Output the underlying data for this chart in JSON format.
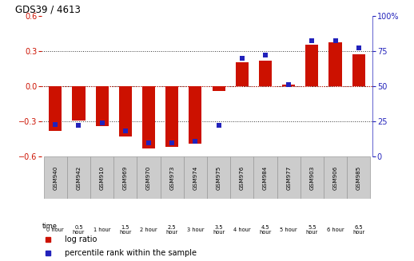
{
  "title": "GDS39 / 4613",
  "samples": [
    "GSM940",
    "GSM942",
    "GSM910",
    "GSM969",
    "GSM970",
    "GSM973",
    "GSM974",
    "GSM975",
    "GSM976",
    "GSM984",
    "GSM977",
    "GSM903",
    "GSM906",
    "GSM985"
  ],
  "time_labels": [
    "0 hour",
    "0.5\nhour",
    "1 hour",
    "1.5\nhour",
    "2 hour",
    "2.5\nhour",
    "3 hour",
    "3.5\nhour",
    "4 hour",
    "4.5\nhour",
    "5 hour",
    "5.5\nhour",
    "6 hour",
    "6.5\nhour"
  ],
  "time_bg_colors": [
    "#c8eac8",
    "#ffffff",
    "#c8eac8",
    "#ffffff",
    "#c8eac8",
    "#ffffff",
    "#c8eac8",
    "#ffffff",
    "#c8eac8",
    "#ffffff",
    "#c8eac8",
    "#ffffff",
    "#c8eac8",
    "#ffffff"
  ],
  "log_ratio": [
    -0.38,
    -0.29,
    -0.34,
    -0.43,
    -0.53,
    -0.52,
    -0.49,
    -0.04,
    0.2,
    0.22,
    0.01,
    0.35,
    0.37,
    0.27
  ],
  "percentile_pct": [
    23,
    22,
    24,
    18,
    10,
    10,
    11,
    22,
    70,
    72,
    51,
    82,
    82,
    77
  ],
  "bar_color": "#cc1100",
  "dot_color": "#2222bb",
  "ylim": [
    -0.6,
    0.6
  ],
  "y2lim": [
    0,
    100
  ],
  "yticks": [
    -0.6,
    -0.3,
    0.0,
    0.3,
    0.6
  ],
  "y2ticks": [
    0,
    25,
    50,
    75,
    100
  ],
  "bar_width": 0.55,
  "bg_color": "#ffffff",
  "plot_bg": "#ffffff",
  "grid_dotted_color": "#333333",
  "zero_line_color": "#cc1100",
  "name_cell_color": "#cccccc",
  "name_cell_edge": "#999999"
}
